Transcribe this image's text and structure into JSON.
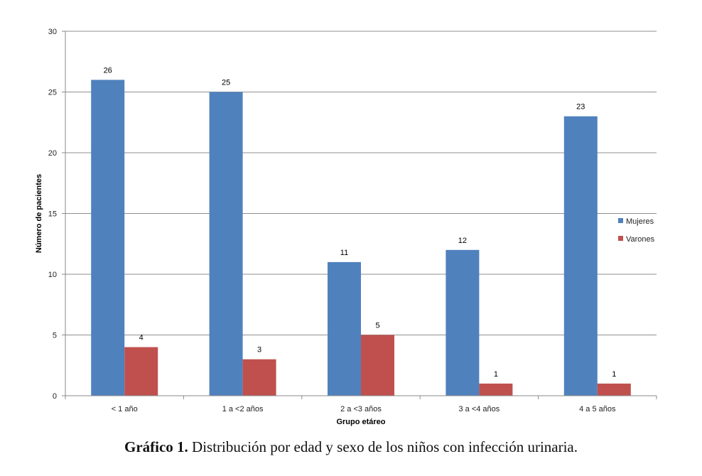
{
  "caption": {
    "label": "Gráfico 1.",
    "text": " Distribución por edad y sexo de los niños con infección urinaria."
  },
  "chart_data": {
    "type": "bar",
    "xlabel": "Grupo etáreo",
    "ylabel": "Número de pacientes",
    "ylim": [
      0,
      30
    ],
    "yticks": [
      0,
      5,
      10,
      15,
      20,
      25,
      30
    ],
    "grid": true,
    "legend_position": "right",
    "categories": [
      "< 1 año",
      "1 a <2 años",
      "2 a <3 años",
      "3 a <4 años",
      "4 a 5 años"
    ],
    "series": [
      {
        "name": "Mujeres",
        "color": "#4f81bd",
        "values": [
          26,
          25,
          11,
          12,
          23
        ]
      },
      {
        "name": "Varones",
        "color": "#c0504d",
        "values": [
          4,
          3,
          5,
          1,
          1
        ]
      }
    ]
  }
}
